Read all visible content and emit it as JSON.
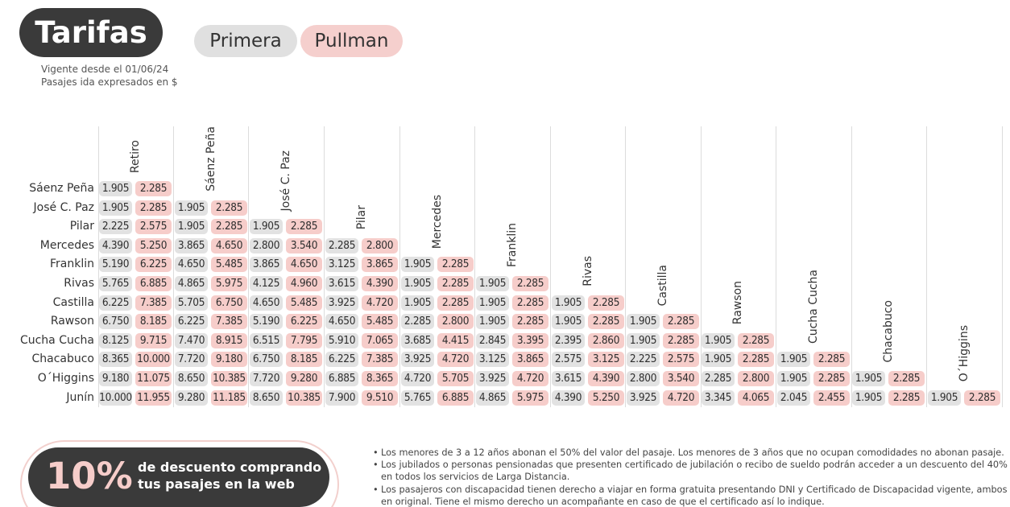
{
  "header": {
    "title": "Tarifas",
    "legend": {
      "primera": "Primera",
      "pullman": "Pullman"
    },
    "valid_from": "Vigente desde el 01/06/24",
    "units": "Pasajes ida expresados en $"
  },
  "colors": {
    "dark": "#3a3a3a",
    "primera": "#e2e2e2",
    "pullman": "#f6cdca"
  },
  "table": {
    "columns": [
      "Retiro",
      "Sáenz Peña",
      "José C. Paz",
      "Pilar",
      "Mercedes",
      "Franklin",
      "Rivas",
      "Castilla",
      "Rawson",
      "Cucha Cucha",
      "Chacabuco",
      "O´Higgins"
    ],
    "rows": [
      {
        "label": "Sáenz Peña",
        "cells": [
          [
            "1.905",
            "2.285"
          ]
        ]
      },
      {
        "label": "José C. Paz",
        "cells": [
          [
            "1.905",
            "2.285"
          ],
          [
            "1.905",
            "2.285"
          ]
        ]
      },
      {
        "label": "Pilar",
        "cells": [
          [
            "2.225",
            "2.575"
          ],
          [
            "1.905",
            "2.285"
          ],
          [
            "1.905",
            "2.285"
          ]
        ]
      },
      {
        "label": "Mercedes",
        "cells": [
          [
            "4.390",
            "5.250"
          ],
          [
            "3.865",
            "4.650"
          ],
          [
            "2.800",
            "3.540"
          ],
          [
            "2.285",
            "2.800"
          ]
        ]
      },
      {
        "label": "Franklin",
        "cells": [
          [
            "5.190",
            "6.225"
          ],
          [
            "4.650",
            "5.485"
          ],
          [
            "3.865",
            "4.650"
          ],
          [
            "3.125",
            "3.865"
          ],
          [
            "1.905",
            "2.285"
          ]
        ]
      },
      {
        "label": "Rivas",
        "cells": [
          [
            "5.765",
            "6.885"
          ],
          [
            "4.865",
            "5.975"
          ],
          [
            "4.125",
            "4.960"
          ],
          [
            "3.615",
            "4.390"
          ],
          [
            "1.905",
            "2.285"
          ],
          [
            "1.905",
            "2.285"
          ]
        ]
      },
      {
        "label": "Castilla",
        "cells": [
          [
            "6.225",
            "7.385"
          ],
          [
            "5.705",
            "6.750"
          ],
          [
            "4.650",
            "5.485"
          ],
          [
            "3.925",
            "4.720"
          ],
          [
            "1.905",
            "2.285"
          ],
          [
            "1.905",
            "2.285"
          ],
          [
            "1.905",
            "2.285"
          ]
        ]
      },
      {
        "label": "Rawson",
        "cells": [
          [
            "6.750",
            "8.185"
          ],
          [
            "6.225",
            "7.385"
          ],
          [
            "5.190",
            "6.225"
          ],
          [
            "4.650",
            "5.485"
          ],
          [
            "2.285",
            "2.800"
          ],
          [
            "1.905",
            "2.285"
          ],
          [
            "1.905",
            "2.285"
          ],
          [
            "1.905",
            "2.285"
          ]
        ]
      },
      {
        "label": "Cucha Cucha",
        "cells": [
          [
            "8.125",
            "9.715"
          ],
          [
            "7.470",
            "8.915"
          ],
          [
            "6.515",
            "7.795"
          ],
          [
            "5.910",
            "7.065"
          ],
          [
            "3.685",
            "4.415"
          ],
          [
            "2.845",
            "3.395"
          ],
          [
            "2.395",
            "2.860"
          ],
          [
            "1.905",
            "2.285"
          ],
          [
            "1.905",
            "2.285"
          ]
        ]
      },
      {
        "label": "Chacabuco",
        "cells": [
          [
            "8.365",
            "10.000"
          ],
          [
            "7.720",
            "9.180"
          ],
          [
            "6.750",
            "8.185"
          ],
          [
            "6.225",
            "7.385"
          ],
          [
            "3.925",
            "4.720"
          ],
          [
            "3.125",
            "3.865"
          ],
          [
            "2.575",
            "3.125"
          ],
          [
            "2.225",
            "2.575"
          ],
          [
            "1.905",
            "2.285"
          ],
          [
            "1.905",
            "2.285"
          ]
        ]
      },
      {
        "label": "O´Higgins",
        "cells": [
          [
            "9.180",
            "11.075"
          ],
          [
            "8.650",
            "10.385"
          ],
          [
            "7.720",
            "9.280"
          ],
          [
            "6.885",
            "8.365"
          ],
          [
            "4.720",
            "5.705"
          ],
          [
            "3.925",
            "4.720"
          ],
          [
            "3.615",
            "4.390"
          ],
          [
            "2.800",
            "3.540"
          ],
          [
            "2.285",
            "2.800"
          ],
          [
            "1.905",
            "2.285"
          ],
          [
            "1.905",
            "2.285"
          ]
        ]
      },
      {
        "label": "Junín",
        "cells": [
          [
            "10.000",
            "11.955"
          ],
          [
            "9.280",
            "11.185"
          ],
          [
            "8.650",
            "10.385"
          ],
          [
            "7.900",
            "9.510"
          ],
          [
            "5.765",
            "6.885"
          ],
          [
            "4.865",
            "5.975"
          ],
          [
            "4.390",
            "5.250"
          ],
          [
            "3.925",
            "4.720"
          ],
          [
            "3.345",
            "4.065"
          ],
          [
            "2.045",
            "2.455"
          ],
          [
            "1.905",
            "2.285"
          ],
          [
            "1.905",
            "2.285"
          ]
        ]
      }
    ]
  },
  "promo": {
    "percent": "10%",
    "line1": "de descuento comprando",
    "line2": "tus pasajes en la web"
  },
  "notes": [
    "Los menores de 3 a 12 años abonan el 50% del valor del pasaje. Los menores de 3 años que no ocupan comodidades no abonan pasaje.",
    "Los jubilados o personas pensionadas que presenten certificado de jubilación o recibo de sueldo podrán acceder a un descuento del 40% en todos los servicios de Larga Distancia.",
    "Los pasajeros con discapacidad tienen derecho a viajar en forma gratuita presentando DNI y Certificado de Discapacidad vigente, ambos en original. Tiene el mismo derecho un acompañante en caso de que el certificado así lo indique."
  ]
}
